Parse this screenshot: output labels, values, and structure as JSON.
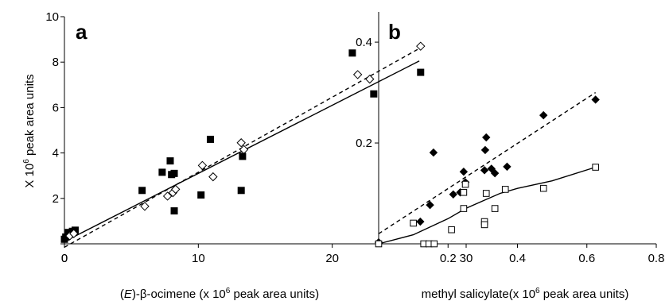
{
  "chart_data": [
    {
      "type": "scatter",
      "panel_label": "a",
      "title": "",
      "xlabel_pre": "(",
      "xlabel_italic": "E",
      "xlabel_mid": ")-β-ocimene (x 10",
      "xlabel_sup": "6",
      "xlabel_post": " peak area units)",
      "ylabel_pre": "X 10",
      "ylabel_sup": "6",
      "ylabel_post": " peak area units",
      "xlim": [
        0,
        30
      ],
      "ylim": [
        0,
        10
      ],
      "xticks": [
        "0",
        "10",
        "20",
        "30"
      ],
      "yticks": [
        "2",
        "4",
        "6",
        "8",
        "10"
      ],
      "grid": false,
      "series": [
        {
          "marker": "filled-square",
          "line": "solid",
          "fit": [
            [
              0,
              0.1
            ],
            [
              26.5,
              8.05
            ]
          ],
          "points": [
            [
              0,
              0.2
            ],
            [
              0.1,
              0.3
            ],
            [
              0.3,
              0.5
            ],
            [
              0.6,
              0.55
            ],
            [
              0.8,
              0.6
            ],
            [
              5.8,
              2.35
            ],
            [
              7.3,
              3.15
            ],
            [
              7.9,
              3.65
            ],
            [
              8.0,
              3.05
            ],
            [
              8.2,
              3.1
            ],
            [
              8.2,
              1.45
            ],
            [
              10.2,
              2.15
            ],
            [
              10.9,
              4.6
            ],
            [
              13.2,
              2.35
            ],
            [
              13.3,
              3.85
            ],
            [
              21.5,
              8.4
            ],
            [
              23.1,
              6.6
            ],
            [
              26.6,
              7.55
            ]
          ]
        },
        {
          "marker": "open-diamond",
          "line": "dashed",
          "fit": [
            [
              0,
              -0.15
            ],
            [
              26.5,
              8.6
            ]
          ],
          "points": [
            [
              0.4,
              0.35
            ],
            [
              0.7,
              0.45
            ],
            [
              6.0,
              1.65
            ],
            [
              7.7,
              2.1
            ],
            [
              8.1,
              2.25
            ],
            [
              8.3,
              2.4
            ],
            [
              10.3,
              3.45
            ],
            [
              11.1,
              2.95
            ],
            [
              13.2,
              4.45
            ],
            [
              13.4,
              4.15
            ],
            [
              21.9,
              7.45
            ],
            [
              22.8,
              7.25
            ],
            [
              26.6,
              8.7
            ]
          ]
        }
      ]
    },
    {
      "type": "scatter",
      "panel_label": "b",
      "title": "",
      "xlabel_pre": "methyl salicylate(x 10",
      "xlabel_sup": "6",
      "xlabel_post": " peak area units)",
      "xlim": [
        0,
        0.8
      ],
      "ylim": [
        0,
        0.46
      ],
      "xticks": [
        "0.2",
        "0.4",
        "0.6",
        "0.8"
      ],
      "yticks": [
        "0.2",
        "0.4"
      ],
      "grid": false,
      "series": [
        {
          "marker": "filled-diamond",
          "line": "dashed",
          "fit": [
            [
              0,
              0.02
            ],
            [
              0.625,
              0.3
            ]
          ],
          "points": [
            [
              0.0,
              0.003
            ],
            [
              0.12,
              0.044
            ],
            [
              0.148,
              0.077
            ],
            [
              0.158,
              0.181
            ],
            [
              0.215,
              0.098
            ],
            [
              0.235,
              0.102
            ],
            [
              0.245,
              0.143
            ],
            [
              0.25,
              0.122
            ],
            [
              0.305,
              0.146
            ],
            [
              0.307,
              0.186
            ],
            [
              0.31,
              0.211
            ],
            [
              0.325,
              0.149
            ],
            [
              0.335,
              0.14
            ],
            [
              0.37,
              0.153
            ],
            [
              0.475,
              0.255
            ],
            [
              0.625,
              0.286
            ]
          ]
        },
        {
          "marker": "open-square",
          "line": "solid",
          "fit_curve": [
            [
              0,
              0.0
            ],
            [
              0.1,
              0.018
            ],
            [
              0.2,
              0.05
            ],
            [
              0.25,
              0.07
            ],
            [
              0.3,
              0.085
            ],
            [
              0.35,
              0.1
            ],
            [
              0.4,
              0.11
            ],
            [
              0.5,
              0.125
            ],
            [
              0.625,
              0.152
            ]
          ],
          "points": [
            [
              0.0,
              0.0
            ],
            [
              0.1,
              0.041
            ],
            [
              0.13,
              0.0
            ],
            [
              0.145,
              0.0
            ],
            [
              0.16,
              0.0
            ],
            [
              0.21,
              0.028
            ],
            [
              0.245,
              0.07
            ],
            [
              0.245,
              0.102
            ],
            [
              0.25,
              0.118
            ],
            [
              0.305,
              0.044
            ],
            [
              0.305,
              0.038
            ],
            [
              0.31,
              0.1
            ],
            [
              0.335,
              0.07
            ],
            [
              0.365,
              0.108
            ],
            [
              0.475,
              0.11
            ],
            [
              0.625,
              0.152
            ]
          ]
        }
      ]
    }
  ]
}
